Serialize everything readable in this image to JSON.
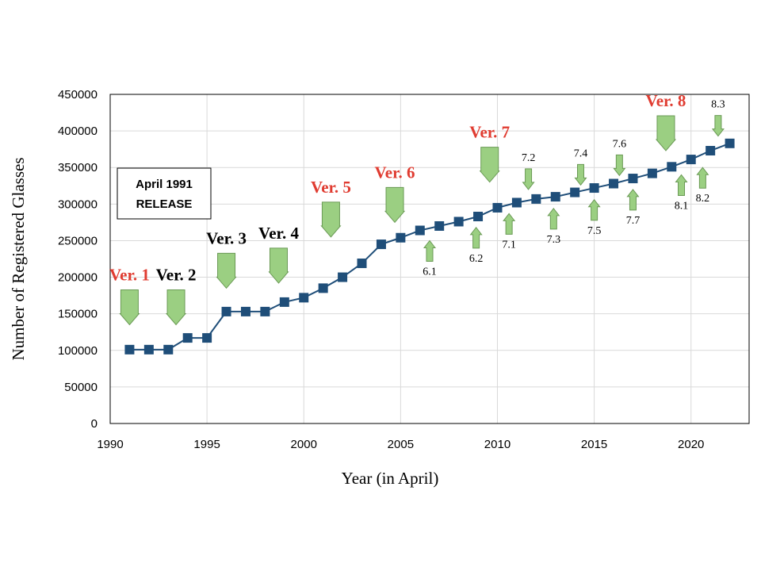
{
  "chart_data": {
    "type": "line",
    "title": "",
    "xlabel": "Year (in April)",
    "ylabel": "Number of Registered Glasses",
    "xlim": [
      1990,
      2023
    ],
    "ylim": [
      0,
      450000
    ],
    "x_ticks": [
      1990,
      1995,
      2000,
      2005,
      2010,
      2015,
      2020
    ],
    "y_ticks": [
      0,
      50000,
      100000,
      150000,
      200000,
      250000,
      300000,
      350000,
      400000,
      450000
    ],
    "grid": true,
    "legend": "none",
    "series": [
      {
        "color": "#1f4e79",
        "marker": "square",
        "x": [
          1991,
          1992,
          1993,
          1994,
          1995,
          1996,
          1997,
          1998,
          1999,
          2000,
          2001,
          2002,
          2003,
          2004,
          2005,
          2006,
          2007,
          2008,
          2009,
          2010,
          2011,
          2012,
          2013,
          2014,
          2015,
          2016,
          2017,
          2018,
          2019,
          2020,
          2021,
          2022
        ],
        "y": [
          101000,
          101000,
          101000,
          117000,
          117000,
          153000,
          153000,
          153000,
          166000,
          172000,
          185000,
          200000,
          219000,
          245000,
          254000,
          264000,
          270000,
          276000,
          283000,
          295000,
          302000,
          307000,
          310000,
          316000,
          322000,
          328000,
          335000,
          342000,
          351000,
          361000,
          373000,
          383000
        ]
      }
    ],
    "text_box": {
      "line1": "April 1991",
      "line2": "RELEASE"
    },
    "annotations": [
      {
        "label": "Ver. 1",
        "x": 1991,
        "y": 135000,
        "color": "#e03c31",
        "size": "major",
        "dir": "down"
      },
      {
        "label": "Ver. 2",
        "x": 1993.4,
        "y": 135000,
        "color": "#000000",
        "size": "major",
        "dir": "down"
      },
      {
        "label": "Ver. 3",
        "x": 1996,
        "y": 185000,
        "color": "#000000",
        "size": "major",
        "dir": "down"
      },
      {
        "label": "Ver. 4",
        "x": 1998.7,
        "y": 192000,
        "color": "#000000",
        "size": "major",
        "dir": "down"
      },
      {
        "label": "Ver. 5",
        "x": 2001.4,
        "y": 255000,
        "color": "#e03c31",
        "size": "major",
        "dir": "down"
      },
      {
        "label": "Ver. 6",
        "x": 2004.7,
        "y": 275000,
        "color": "#e03c31",
        "size": "major",
        "dir": "down"
      },
      {
        "label": "6.1",
        "x": 2006.5,
        "y": 250000,
        "color": "#000000",
        "size": "minor",
        "dir": "up"
      },
      {
        "label": "6.2",
        "x": 2008.9,
        "y": 268000,
        "color": "#000000",
        "size": "minor",
        "dir": "up"
      },
      {
        "label": "Ver. 7",
        "x": 2009.6,
        "y": 330000,
        "color": "#e03c31",
        "size": "major",
        "dir": "down"
      },
      {
        "label": "7.1",
        "x": 2010.6,
        "y": 287000,
        "color": "#000000",
        "size": "minor",
        "dir": "up"
      },
      {
        "label": "7.2",
        "x": 2011.6,
        "y": 320000,
        "color": "#000000",
        "size": "minor",
        "dir": "down"
      },
      {
        "label": "7.3",
        "x": 2012.9,
        "y": 294000,
        "color": "#000000",
        "size": "minor",
        "dir": "up"
      },
      {
        "label": "7.4",
        "x": 2014.3,
        "y": 326000,
        "color": "#000000",
        "size": "minor",
        "dir": "down"
      },
      {
        "label": "7.5",
        "x": 2015,
        "y": 306000,
        "color": "#000000",
        "size": "minor",
        "dir": "up"
      },
      {
        "label": "7.6",
        "x": 2016.3,
        "y": 339000,
        "color": "#000000",
        "size": "minor",
        "dir": "down"
      },
      {
        "label": "7.7",
        "x": 2017,
        "y": 320000,
        "color": "#000000",
        "size": "minor",
        "dir": "up"
      },
      {
        "label": "Ver. 8",
        "x": 2018.7,
        "y": 373000,
        "color": "#e03c31",
        "size": "major",
        "dir": "down"
      },
      {
        "label": "8.1",
        "x": 2019.5,
        "y": 340000,
        "color": "#000000",
        "size": "minor",
        "dir": "up"
      },
      {
        "label": "8.2",
        "x": 2020.6,
        "y": 350000,
        "color": "#000000",
        "size": "minor",
        "dir": "up"
      },
      {
        "label": "8.3",
        "x": 2021.4,
        "y": 393000,
        "color": "#000000",
        "size": "minor",
        "dir": "down"
      }
    ]
  }
}
